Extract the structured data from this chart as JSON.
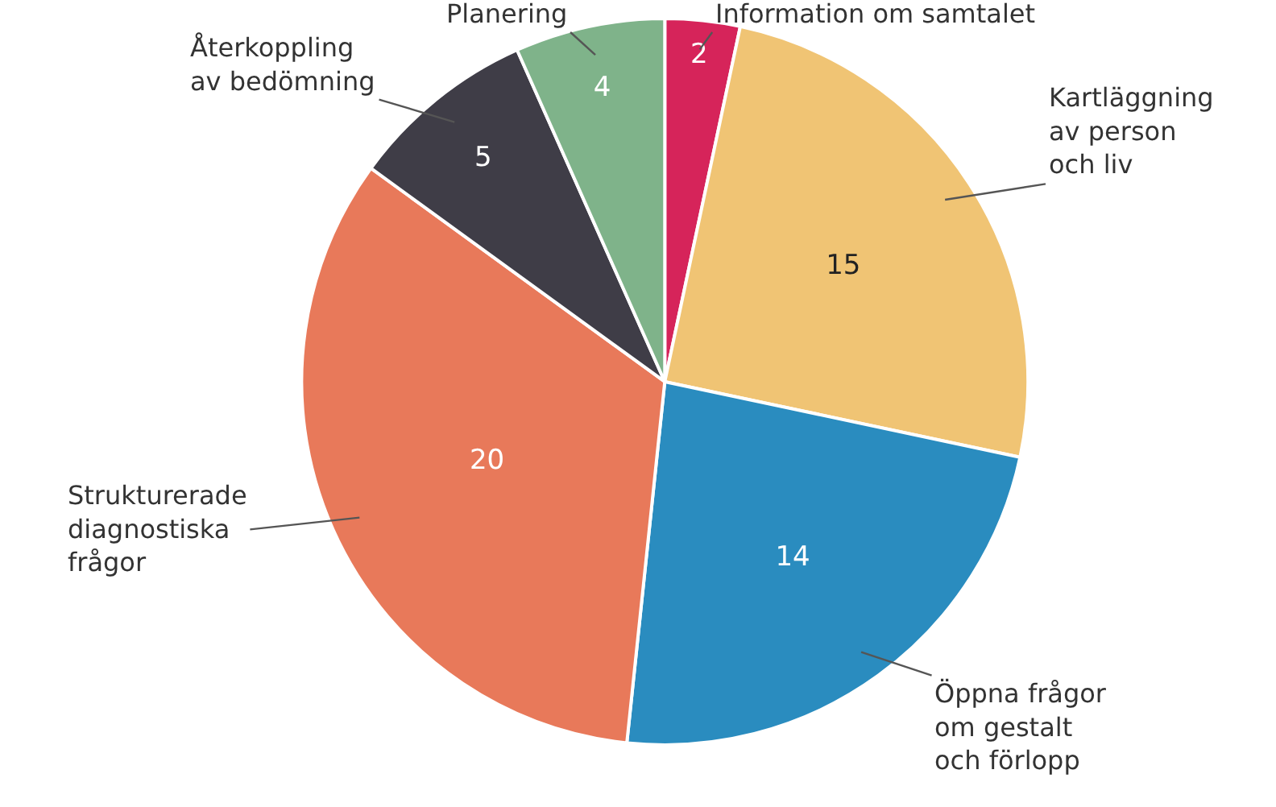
{
  "chart_data": {
    "type": "pie",
    "categories": [
      "Information om samtalet",
      "Kartläggning\nav person\noch liv",
      "Öppna frågor\nom gestalt\noch förlopp",
      "Strukturerade\ndiagnostiska\nfrågor",
      "Återkoppling\nav bedömning",
      "Planering"
    ],
    "values": [
      2,
      15,
      14,
      20,
      5,
      4
    ],
    "colors": [
      "#d6245a",
      "#f0c474",
      "#2a8cbf",
      "#e8795a",
      "#3f3d47",
      "#7fb38a"
    ],
    "data_labels": true,
    "legend": false
  }
}
